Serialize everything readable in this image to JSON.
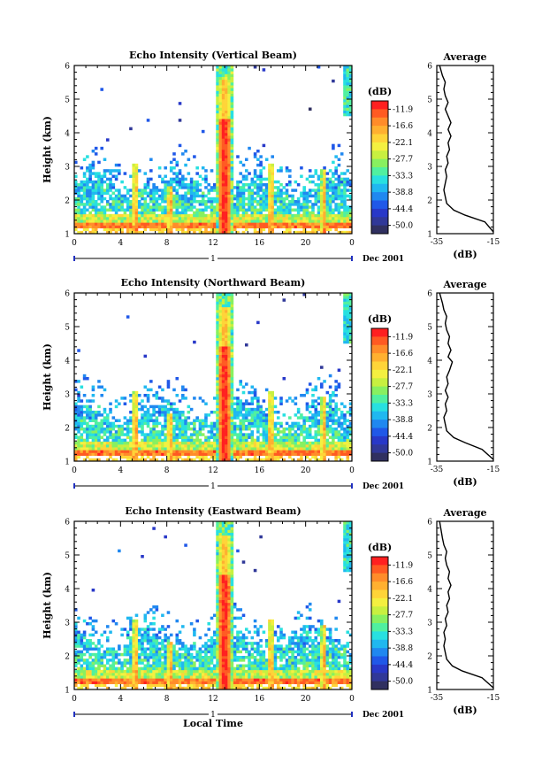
{
  "figure": {
    "x_axis_title": "Local Time",
    "date_label": "Dec 2001",
    "day_marker_label": "1"
  },
  "colorbar": {
    "unit": "(dB)",
    "tick_labels": [
      "-11.9",
      "-16.6",
      "-22.1",
      "-27.7",
      "-33.3",
      "-38.8",
      "-44.4",
      "-50.0"
    ],
    "colors": [
      "#ff2020",
      "#ff5a22",
      "#ff8c2a",
      "#ffb030",
      "#ffd438",
      "#f4f040",
      "#c8f040",
      "#88f060",
      "#50f0a0",
      "#28e0e0",
      "#20b8f0",
      "#2088f0",
      "#2058e8",
      "#2838c8",
      "#303898",
      "#303060"
    ]
  },
  "profile_axis": {
    "title": "Average",
    "xlabel": "(dB)",
    "x_tick_labels": [
      "-35",
      "-15"
    ]
  },
  "chart_data": [
    {
      "type": "heatmap",
      "title": "Echo Intensity (Vertical Beam)",
      "xlabel": "",
      "ylabel": "Height (km)",
      "x_tick_labels": [
        "0",
        "4",
        "8",
        "12",
        "16",
        "20",
        "0"
      ],
      "y_tick_labels": [
        "1",
        "2",
        "3",
        "4",
        "5",
        "6"
      ],
      "xlim": [
        0,
        24
      ],
      "ylim": [
        1,
        6
      ],
      "value_unit": "dB",
      "value_range": [
        -50.0,
        -11.9
      ],
      "profile": {
        "type": "line",
        "title": "Average",
        "xlabel": "(dB)",
        "xlim": [
          -35,
          -15
        ],
        "ylim": [
          1,
          6
        ],
        "x": [
          -13,
          -18,
          -25,
          -29,
          -31.5,
          -32,
          -32.5,
          -32,
          -31.5,
          -32,
          -31,
          -31.5,
          -30.5,
          -31,
          -30,
          -31,
          -30,
          -31,
          -32,
          -31,
          -32,
          -32.5,
          -32,
          -33,
          -33.5,
          -34
        ],
        "y": [
          1.05,
          1.35,
          1.55,
          1.7,
          1.9,
          2.1,
          2.3,
          2.5,
          2.7,
          2.9,
          3.1,
          3.3,
          3.5,
          3.7,
          3.9,
          4.1,
          4.3,
          4.5,
          4.7,
          4.9,
          5.1,
          5.3,
          5.5,
          5.7,
          5.85,
          6.0
        ]
      }
    },
    {
      "type": "heatmap",
      "title": "Echo Intensity (Northward Beam)",
      "xlabel": "",
      "ylabel": "Height (km)",
      "x_tick_labels": [
        "0",
        "4",
        "8",
        "12",
        "16",
        "20",
        "0"
      ],
      "y_tick_labels": [
        "1",
        "2",
        "3",
        "4",
        "5",
        "6"
      ],
      "xlim": [
        0,
        24
      ],
      "ylim": [
        1,
        6
      ],
      "value_unit": "dB",
      "value_range": [
        -50.0,
        -11.9
      ],
      "profile": {
        "type": "line",
        "title": "Average",
        "xlabel": "(dB)",
        "xlim": [
          -35,
          -15
        ],
        "ylim": [
          1,
          6
        ],
        "x": [
          -14,
          -19,
          -25,
          -29,
          -31.5,
          -32,
          -32.5,
          -31.5,
          -32,
          -31,
          -32,
          -31,
          -31.5,
          -30.5,
          -29.5,
          -31,
          -30,
          -31,
          -30.5,
          -31.5,
          -32,
          -31.5,
          -32.5,
          -33,
          -33.5,
          -34
        ],
        "y": [
          1.05,
          1.35,
          1.55,
          1.7,
          1.9,
          2.1,
          2.3,
          2.5,
          2.7,
          2.9,
          3.1,
          3.3,
          3.5,
          3.7,
          3.95,
          4.1,
          4.3,
          4.5,
          4.7,
          4.9,
          5.1,
          5.3,
          5.5,
          5.7,
          5.85,
          6.0
        ]
      }
    },
    {
      "type": "heatmap",
      "title": "Echo Intensity (Eastward Beam)",
      "xlabel": "Local Time",
      "ylabel": "Height (km)",
      "x_tick_labels": [
        "0",
        "4",
        "8",
        "12",
        "16",
        "20",
        "0"
      ],
      "y_tick_labels": [
        "1",
        "2",
        "3",
        "4",
        "5",
        "6"
      ],
      "xlim": [
        0,
        24
      ],
      "ylim": [
        1,
        6
      ],
      "value_unit": "dB",
      "value_range": [
        -50.0,
        -11.9
      ],
      "profile": {
        "type": "line",
        "title": "Average",
        "xlabel": "(dB)",
        "xlim": [
          -35,
          -15
        ],
        "ylim": [
          1,
          6
        ],
        "x": [
          -13.5,
          -19,
          -26,
          -29.5,
          -31.5,
          -32,
          -32.5,
          -32,
          -32.5,
          -31.5,
          -32,
          -31,
          -31.5,
          -30.5,
          -31,
          -30,
          -31,
          -30.5,
          -31.5,
          -32,
          -31.5,
          -32.5,
          -33,
          -33.5,
          -34
        ],
        "y": [
          1.05,
          1.35,
          1.55,
          1.7,
          1.9,
          2.1,
          2.3,
          2.5,
          2.7,
          2.9,
          3.1,
          3.3,
          3.5,
          3.7,
          3.9,
          4.1,
          4.3,
          4.5,
          4.7,
          4.9,
          5.1,
          5.3,
          5.5,
          5.75,
          6.0
        ]
      }
    }
  ]
}
